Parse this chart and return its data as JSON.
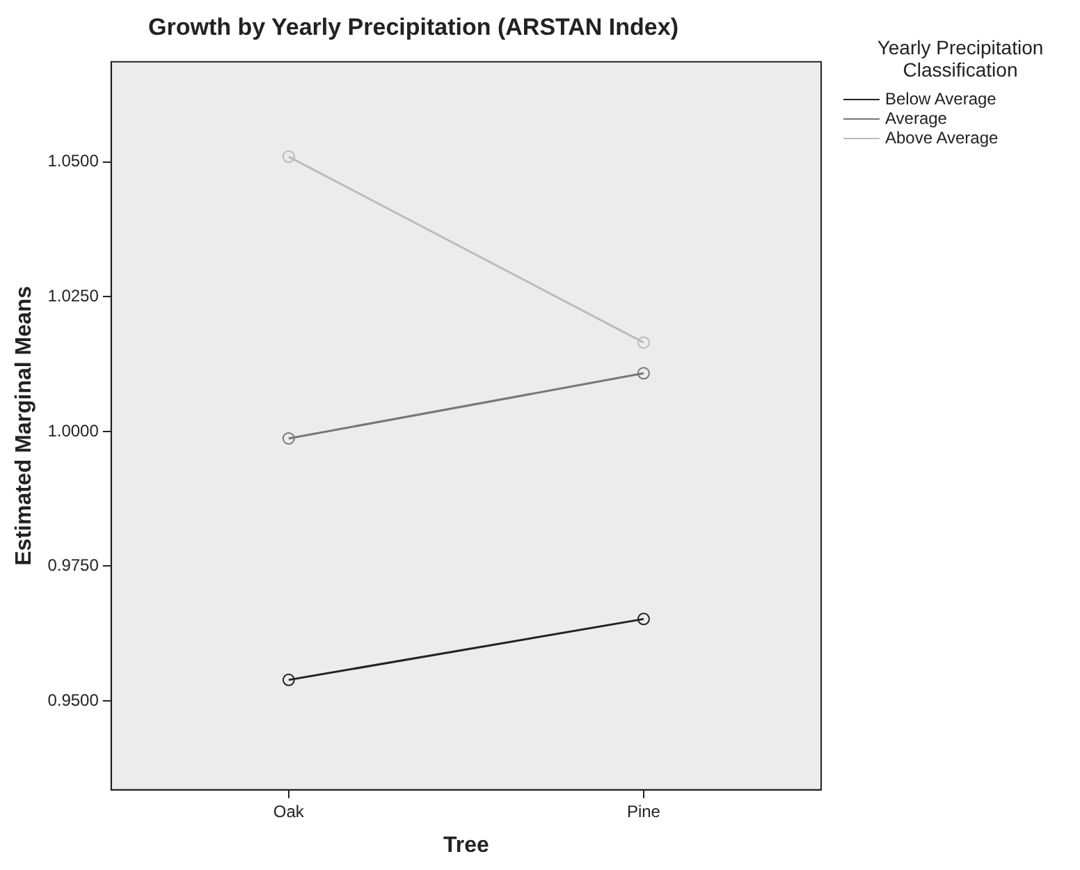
{
  "chart_data": {
    "type": "line",
    "title": "Growth by Yearly Precipitation (ARSTAN Index)",
    "xlabel": "Tree",
    "ylabel": "Estimated Marginal Means",
    "legend_title": "Yearly Precipitation Classification",
    "categories": [
      "Oak",
      "Pine"
    ],
    "series": [
      {
        "name": "Below Average",
        "color": "#222222",
        "values": [
          0.9539,
          0.9652
        ]
      },
      {
        "name": "Average",
        "color": "#777777",
        "values": [
          0.9987,
          1.0108
        ]
      },
      {
        "name": "Above Average",
        "color": "#bbbbbb",
        "values": [
          1.051,
          1.0165
        ]
      }
    ],
    "ylim": [
      0.9335,
      1.0686
    ],
    "yticks": [
      {
        "value": 0.95,
        "label": "0.9500"
      },
      {
        "value": 0.975,
        "label": "0.9750"
      },
      {
        "value": 1.0,
        "label": "1.0000"
      },
      {
        "value": 1.025,
        "label": "1.0250"
      },
      {
        "value": 1.05,
        "label": "1.0500"
      }
    ],
    "grid": false,
    "legend": "top right",
    "marker": "circle",
    "line_style": "solid"
  }
}
